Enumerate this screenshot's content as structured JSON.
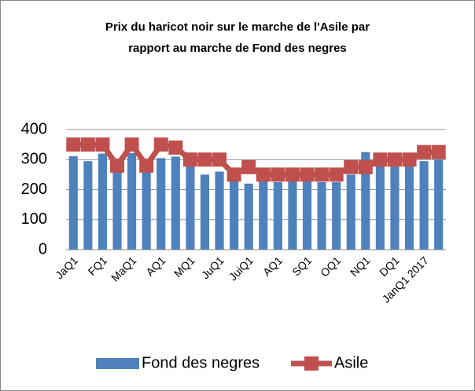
{
  "chart_data": {
    "type": "bar_line",
    "title": [
      "Prix du haricot noir sur le marche de l'Asile par",
      "rapport au marche de Fond des negres"
    ],
    "categories": [
      "JaQ1",
      null,
      "FQ1",
      null,
      "MaQ1",
      null,
      "AQ1",
      null,
      "MQ1",
      null,
      "JuQ1",
      null,
      "JuiQ1",
      null,
      "AQ1",
      null,
      "SQ1",
      null,
      "OQ1",
      null,
      "NQ1",
      null,
      "DQ1",
      null,
      "JanQ1 2017",
      null
    ],
    "series": [
      {
        "name": "Fond des negres",
        "color": "#4f81bd",
        "kind": "bar",
        "values": [
          311,
          295,
          320,
          280,
          322,
          283,
          305,
          310,
          282,
          250,
          260,
          235,
          220,
          230,
          225,
          230,
          230,
          225,
          225,
          250,
          325,
          285,
          285,
          285,
          295,
          300
        ]
      },
      {
        "name": "Asile",
        "color": "#c0504d",
        "kind": "line",
        "values": [
          350,
          350,
          350,
          280,
          350,
          280,
          350,
          340,
          300,
          300,
          300,
          250,
          275,
          250,
          250,
          250,
          250,
          250,
          250,
          275,
          275,
          300,
          300,
          300,
          325,
          325
        ]
      }
    ],
    "ylim": [
      0,
      400
    ],
    "yticks": [
      0,
      100,
      200,
      300,
      400
    ],
    "grid": true,
    "legend": "bottom"
  }
}
